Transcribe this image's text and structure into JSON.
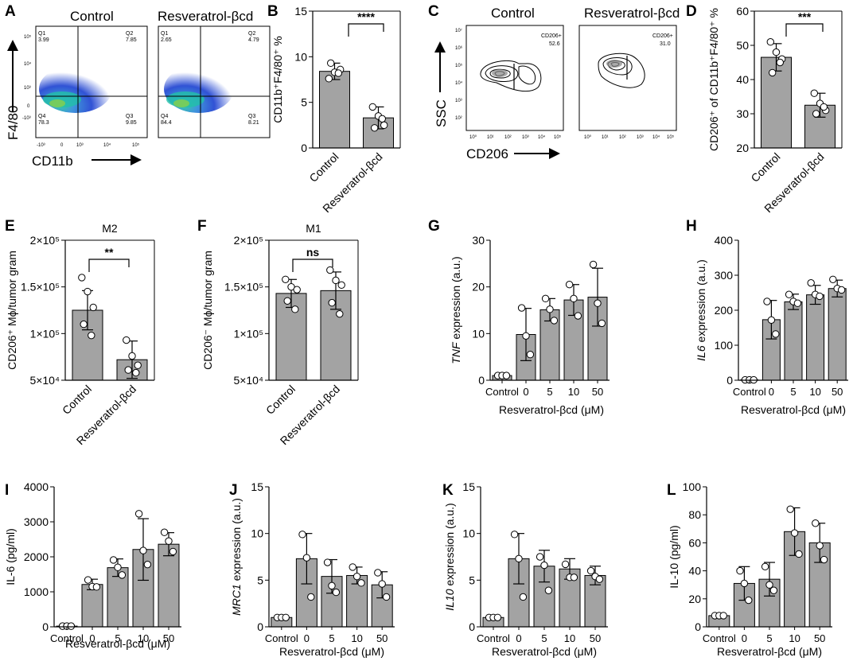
{
  "panels": {
    "A": {
      "letter": "A",
      "headers": [
        "Control",
        "Resveratrol-βcd"
      ],
      "ylabel": "F4/80",
      "xlabel": "CD11b",
      "quadrants": [
        {
          "q1": "Q1",
          "q1v": "3.99",
          "q2": "Q2",
          "q2v": "7.85",
          "q4": "Q4",
          "q4v": "78.3",
          "q3": "Q3",
          "q3v": "9.85"
        },
        {
          "q1": "Q1",
          "q1v": "2.65",
          "q2": "Q2",
          "q2v": "4.79",
          "q4": "Q4",
          "q4v": "84.4",
          "q3": "Q3",
          "q3v": "8.21"
        }
      ],
      "yticks": [
        "10⁵",
        "10⁴",
        "10³",
        "0",
        "-10³"
      ],
      "xticks": [
        "-10³",
        "0",
        "10³",
        "10⁴",
        "10⁵"
      ]
    },
    "C": {
      "letter": "C",
      "headers": [
        "Control",
        "Resveratrol-βcd"
      ],
      "ylabel": "SSC",
      "xlabel": "CD206",
      "gates": [
        {
          "label": "CD206+",
          "value": "52.6"
        },
        {
          "label": "CD206+",
          "value": "31.0"
        }
      ],
      "yticks": [
        "10⁷",
        "10⁶",
        "10⁵",
        "10⁴",
        "10³",
        "10²"
      ],
      "xticks": [
        "10⁰",
        "10¹",
        "10²",
        "10³",
        "10⁴",
        "10⁵"
      ]
    }
  },
  "chart_data": [
    {
      "id": "B",
      "type": "bar",
      "letter": "B",
      "title": "",
      "categories": [
        "Control",
        "Resveratrol-βcd"
      ],
      "values": [
        8.4,
        3.3
      ],
      "errors": [
        0.9,
        1.2
      ],
      "points": [
        [
          7.6,
          8.3,
          8.6,
          9.3,
          8.2
        ],
        [
          4.5,
          3.5,
          2.5,
          2.2,
          3.2
        ]
      ],
      "ylabel": "CD11b⁺F4/80⁺ %",
      "xlabel": "",
      "ylim": [
        0,
        15
      ],
      "yticks": [
        0,
        5,
        10,
        15
      ],
      "ytick_labels": [
        "0",
        "5",
        "10",
        "15"
      ],
      "significance": "****"
    },
    {
      "id": "D",
      "type": "bar",
      "letter": "D",
      "title": "",
      "categories": [
        "Control",
        "Resveratrol-βcd"
      ],
      "values": [
        46.5,
        32.5
      ],
      "errors": [
        4.0,
        3.5
      ],
      "points": [
        [
          51,
          48,
          46,
          42,
          45
        ],
        [
          36,
          33,
          31,
          30,
          32
        ]
      ],
      "ylabel": "CD206⁺ of CD11b⁺F4/80⁺ %",
      "xlabel": "",
      "ylim": [
        20,
        60
      ],
      "yticks": [
        20,
        30,
        40,
        50,
        60
      ],
      "ytick_labels": [
        "20",
        "30",
        "40",
        "50",
        "60"
      ],
      "significance": "***"
    },
    {
      "id": "E",
      "type": "bar",
      "letter": "E",
      "title": "M2",
      "categories": [
        "Control",
        "Resveratrol-βcd"
      ],
      "values": [
        125000,
        72000
      ],
      "errors": [
        21000,
        20000
      ],
      "points": [
        [
          160000,
          145000,
          128000,
          110000,
          98000
        ],
        [
          93000,
          76000,
          66000,
          61000,
          58000
        ]
      ],
      "ylabel": "CD206⁺ Mϕ/tumor gram",
      "xlabel": "",
      "ylim": [
        50000,
        200000
      ],
      "yticks": [
        50000,
        100000,
        150000,
        200000
      ],
      "ytick_labels": [
        "5×10⁴",
        "1×10⁵",
        "1.5×10⁵",
        "2×10⁵"
      ],
      "significance": "**"
    },
    {
      "id": "F",
      "type": "bar",
      "letter": "F",
      "title": "M1",
      "categories": [
        "Control",
        "Resveratrol-βcd"
      ],
      "values": [
        143000,
        146000
      ],
      "errors": [
        15000,
        20000
      ],
      "points": [
        [
          158000,
          150000,
          147000,
          135000,
          126000
        ],
        [
          168000,
          157000,
          152000,
          133000,
          121000
        ]
      ],
      "ylabel": "CD206⁻ Mϕ/tumor gram",
      "xlabel": "",
      "ylim": [
        50000,
        200000
      ],
      "yticks": [
        50000,
        100000,
        150000,
        200000
      ],
      "ytick_labels": [
        "5×10⁴",
        "1×10⁵",
        "1.5×10⁵",
        "2×10⁵"
      ],
      "significance": "ns"
    },
    {
      "id": "G",
      "type": "bar",
      "letter": "G",
      "title": "",
      "categories": [
        "Control",
        "0",
        "5",
        "10",
        "50"
      ],
      "values": [
        1.0,
        9.8,
        15.1,
        17.2,
        17.8
      ],
      "errors": [
        0.3,
        5.6,
        2.4,
        3.3,
        6.2
      ],
      "points": [
        [
          1.0,
          1.0,
          1.0
        ],
        [
          15.5,
          9.5,
          5.5
        ],
        [
          17.5,
          15.2,
          12.8
        ],
        [
          20.5,
          17.5,
          13.8
        ],
        [
          24.8,
          16.5,
          12.2
        ]
      ],
      "ylabel": "TNF expression (a.u.)",
      "ylabel_italic": "TNF",
      "ylabel_rest": " expression (a.u.)",
      "xlabel": "Resveratrol-βcd (μM)",
      "ylim": [
        0,
        30
      ],
      "yticks": [
        0,
        10,
        20,
        30
      ],
      "ytick_labels": [
        "0",
        "10",
        "20",
        "30"
      ]
    },
    {
      "id": "H",
      "type": "bar",
      "letter": "H",
      "title": "",
      "categories": [
        "Control",
        "0",
        "5",
        "10",
        "50"
      ],
      "values": [
        1,
        173,
        224,
        244,
        262
      ],
      "errors": [
        0,
        55,
        22,
        27,
        24
      ],
      "points": [
        [
          1,
          1,
          1
        ],
        [
          225,
          172,
          132
        ],
        [
          245,
          225,
          220
        ],
        [
          278,
          245,
          240
        ],
        [
          288,
          262,
          258
        ]
      ],
      "ylabel": "IL6 expression (a.u.)",
      "ylabel_italic": "IL6",
      "ylabel_rest": " expression (a.u.)",
      "xlabel": "Resveratrol-βcd (μM)",
      "ylim": [
        0,
        400
      ],
      "yticks": [
        0,
        100,
        200,
        300,
        400
      ],
      "ytick_labels": [
        "0",
        "100",
        "200",
        "300",
        "400"
      ]
    },
    {
      "id": "I",
      "type": "bar",
      "letter": "I",
      "title": "",
      "categories": [
        "Control",
        "0",
        "5",
        "10",
        "50"
      ],
      "values": [
        20,
        1210,
        1690,
        2210,
        2360
      ],
      "errors": [
        0,
        150,
        250,
        880,
        330
      ],
      "points": [
        [
          20,
          20,
          20
        ],
        [
          1340,
          1150,
          1140
        ],
        [
          1910,
          1700,
          1480
        ],
        [
          3230,
          2180,
          1780
        ],
        [
          2700,
          2450,
          2150
        ]
      ],
      "ylabel": "IL-6 (pg/ml)",
      "xlabel": "Resveratrol-βcd (μM)",
      "ylim": [
        0,
        4000
      ],
      "yticks": [
        0,
        1000,
        2000,
        3000,
        4000
      ],
      "ytick_labels": [
        "0",
        "1000",
        "2000",
        "3000",
        "4000"
      ]
    },
    {
      "id": "J",
      "type": "bar",
      "letter": "J",
      "title": "",
      "categories": [
        "Control",
        "0",
        "5",
        "10",
        "50"
      ],
      "values": [
        1.0,
        7.3,
        5.4,
        5.5,
        4.5
      ],
      "errors": [
        0.1,
        2.7,
        1.8,
        0.9,
        1.4
      ],
      "points": [
        [
          1.0,
          1.0,
          1.0
        ],
        [
          9.9,
          7.4,
          3.2
        ],
        [
          6.9,
          4.4,
          3.7
        ],
        [
          6.4,
          5.4,
          4.7
        ],
        [
          5.8,
          4.6,
          3.2
        ]
      ],
      "ylabel": "MRC1 expression (a.u.)",
      "ylabel_italic": "MRC1",
      "ylabel_rest": " expression (a.u.)",
      "xlabel": "Resveratrol-βcd (μM)",
      "ylim": [
        0,
        15
      ],
      "yticks": [
        0,
        5,
        10,
        15
      ],
      "ytick_labels": [
        "0",
        "5",
        "10",
        "15"
      ]
    },
    {
      "id": "K",
      "type": "bar",
      "letter": "K",
      "title": "",
      "categories": [
        "Control",
        "0",
        "5",
        "10",
        "50"
      ],
      "values": [
        1.0,
        7.3,
        6.5,
        6.2,
        5.5
      ],
      "errors": [
        0.1,
        2.7,
        1.7,
        1.1,
        1.0
      ],
      "points": [
        [
          1.0,
          1.0,
          1.0
        ],
        [
          9.9,
          7.3,
          3.2
        ],
        [
          7.5,
          6.6,
          3.9
        ],
        [
          6.7,
          5.3,
          5.3
        ],
        [
          6.0,
          5.4,
          5.1
        ]
      ],
      "ylabel": "IL10 expression (a.u.)",
      "ylabel_italic": "IL10",
      "ylabel_rest": " expression (a.u.)",
      "xlabel": "Resveratrol-βcd (μM)",
      "ylim": [
        0,
        15
      ],
      "yticks": [
        0,
        5,
        10,
        15
      ],
      "ytick_labels": [
        "0",
        "5",
        "10",
        "15"
      ]
    },
    {
      "id": "L",
      "type": "bar",
      "letter": "L",
      "title": "",
      "categories": [
        "Control",
        "0",
        "5",
        "10",
        "50"
      ],
      "values": [
        8,
        31,
        34,
        68,
        60
      ],
      "errors": [
        1,
        12,
        12,
        17,
        14
      ],
      "points": [
        [
          8,
          8,
          8
        ],
        [
          40,
          31,
          19
        ],
        [
          43,
          30,
          26
        ],
        [
          84,
          67,
          52
        ],
        [
          74,
          58,
          48
        ]
      ],
      "ylabel": "IL-10 (pg/ml)",
      "xlabel": "Resveratrol-βcd (μM)",
      "ylim": [
        0,
        100
      ],
      "yticks": [
        0,
        20,
        40,
        60,
        80,
        100
      ],
      "ytick_labels": [
        "0",
        "20",
        "40",
        "60",
        "80",
        "100"
      ]
    }
  ],
  "colors": {
    "bar": "#a3a3a3",
    "axis": "#000000",
    "point_fill": "#ffffff"
  }
}
